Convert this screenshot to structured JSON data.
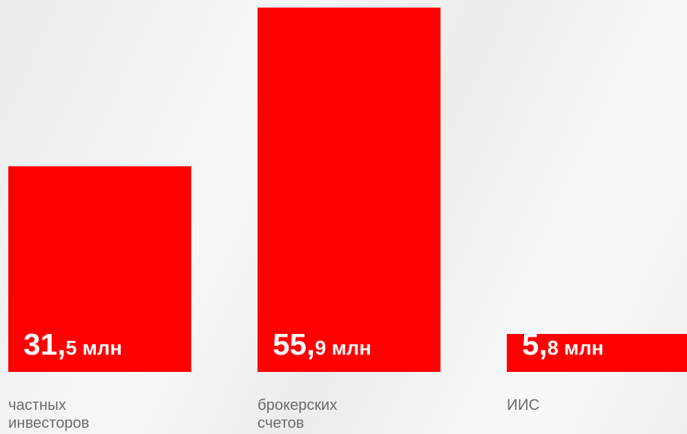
{
  "chart_data": {
    "type": "bar",
    "categories": [
      "частных инвесторов",
      "брокерских счетов",
      "ИИС"
    ],
    "values": [
      31.5,
      55.9,
      5.8
    ],
    "value_labels": [
      "31,5 млн",
      "55,9 млн",
      "5,8 млн"
    ],
    "color": "#ff0000"
  }
}
